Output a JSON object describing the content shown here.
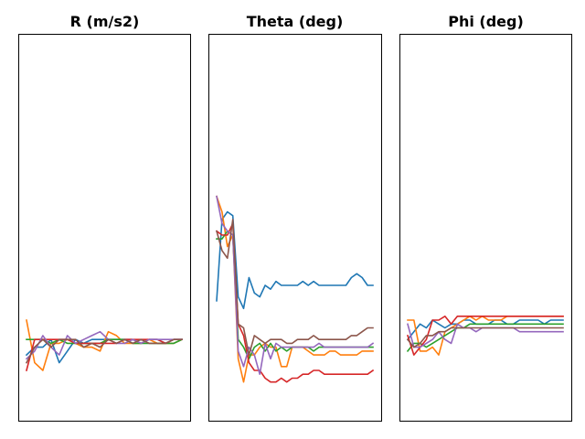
{
  "chart_data": [
    {
      "type": "line",
      "title": "R (m/s2)",
      "x": [
        0,
        1,
        2,
        3,
        4,
        5,
        6,
        7,
        8,
        9,
        10,
        11,
        12,
        13,
        14,
        15,
        16,
        17,
        18,
        19
      ],
      "ylim": [
        0,
        100
      ],
      "axes_visible": false,
      "grid": false,
      "series": [
        {
          "color": "#1f77b4",
          "values": [
            17,
            19,
            19,
            21,
            15,
            18,
            21,
            20,
            21,
            21,
            21,
            21,
            21,
            21,
            20,
            21,
            21,
            20,
            21,
            21
          ]
        },
        {
          "color": "#ff7f0e",
          "values": [
            26,
            15,
            13,
            20,
            20,
            21,
            20,
            19,
            19,
            18,
            23,
            22,
            20,
            20,
            20,
            21,
            20,
            20,
            20,
            21
          ]
        },
        {
          "color": "#2ca02c",
          "values": [
            21,
            21,
            21,
            20,
            21,
            20,
            20,
            20,
            20,
            20,
            21,
            21,
            21,
            20,
            20,
            20,
            20,
            20,
            20,
            21
          ]
        },
        {
          "color": "#d62728",
          "values": [
            13,
            21,
            21,
            21,
            21,
            21,
            20,
            20,
            20,
            20,
            20,
            20,
            21,
            21,
            21,
            21,
            21,
            20,
            21,
            21
          ]
        },
        {
          "color": "#9467bd",
          "values": [
            16,
            18,
            22,
            19,
            17,
            22,
            20,
            21,
            22,
            23,
            21,
            20,
            20,
            21,
            20,
            21,
            21,
            21,
            21,
            21
          ]
        },
        {
          "color": "#8c564b",
          "values": [
            15,
            19,
            21,
            19,
            21,
            21,
            21,
            19,
            20,
            19,
            21,
            20,
            21,
            20,
            21,
            20,
            20,
            20,
            21,
            21
          ]
        }
      ]
    },
    {
      "type": "line",
      "title": "Theta (deg)",
      "x": [
        0,
        1,
        2,
        3,
        4,
        5,
        6,
        7,
        8,
        9,
        10,
        11,
        12,
        13,
        14,
        15,
        16,
        17,
        18,
        19,
        20,
        21,
        22,
        23,
        24,
        25,
        26,
        27,
        28,
        29
      ],
      "ylim": [
        0,
        100
      ],
      "axes_visible": false,
      "grid": false,
      "series": [
        {
          "color": "#1f77b4",
          "values": [
            31,
            52,
            54,
            53,
            32,
            29,
            37,
            33,
            32,
            35,
            34,
            36,
            35,
            35,
            35,
            35,
            36,
            35,
            36,
            35,
            35,
            35,
            35,
            35,
            35,
            37,
            38,
            37,
            35,
            35
          ]
        },
        {
          "color": "#ff7f0e",
          "values": [
            58,
            54,
            45,
            48,
            16,
            10,
            17,
            17,
            19,
            20,
            19,
            19,
            14,
            14,
            19,
            19,
            19,
            18,
            17,
            17,
            17,
            18,
            18,
            17,
            17,
            17,
            17,
            18,
            18,
            18
          ]
        },
        {
          "color": "#2ca02c",
          "values": [
            47,
            47,
            49,
            48,
            21,
            19,
            16,
            19,
            20,
            18,
            20,
            18,
            19,
            18,
            19,
            19,
            19,
            19,
            18,
            19,
            19,
            19,
            19,
            19,
            19,
            19,
            19,
            19,
            19,
            19
          ]
        },
        {
          "color": "#d62728",
          "values": [
            49,
            48,
            48,
            51,
            25,
            22,
            15,
            13,
            13,
            11,
            10,
            10,
            11,
            10,
            11,
            11,
            12,
            12,
            13,
            13,
            12,
            12,
            12,
            12,
            12,
            12,
            12,
            12,
            12,
            13
          ]
        },
        {
          "color": "#9467bd",
          "values": [
            58,
            51,
            49,
            48,
            18,
            14,
            19,
            17,
            12,
            20,
            16,
            20,
            19,
            19,
            19,
            19,
            19,
            19,
            19,
            20,
            19,
            19,
            19,
            19,
            19,
            19,
            19,
            19,
            19,
            20
          ]
        },
        {
          "color": "#8c564b",
          "values": [
            49,
            44,
            42,
            52,
            25,
            24,
            17,
            22,
            21,
            20,
            21,
            21,
            21,
            20,
            20,
            21,
            21,
            21,
            22,
            21,
            21,
            21,
            21,
            21,
            21,
            22,
            22,
            23,
            24,
            24
          ]
        }
      ]
    },
    {
      "type": "line",
      "title": "Phi (deg)",
      "x": [
        0,
        1,
        2,
        3,
        4,
        5,
        6,
        7,
        8,
        9,
        10,
        11,
        12,
        13,
        14,
        15,
        16,
        17,
        18,
        19,
        20,
        21,
        22,
        23,
        24,
        25
      ],
      "ylim": [
        0,
        100
      ],
      "axes_visible": false,
      "grid": false,
      "series": [
        {
          "color": "#1f77b4",
          "values": [
            21,
            23,
            25,
            24,
            26,
            25,
            24,
            25,
            25,
            26,
            26,
            25,
            25,
            25,
            26,
            26,
            25,
            25,
            26,
            26,
            26,
            26,
            25,
            26,
            26,
            26
          ]
        },
        {
          "color": "#ff7f0e",
          "values": [
            26,
            26,
            18,
            18,
            19,
            17,
            23,
            24,
            25,
            26,
            27,
            26,
            27,
            26,
            26,
            26,
            27,
            27,
            27,
            27,
            27,
            27,
            27,
            27,
            27,
            27
          ]
        },
        {
          "color": "#2ca02c",
          "values": [
            18,
            20,
            20,
            19,
            20,
            21,
            22,
            23,
            24,
            24,
            25,
            25,
            25,
            25,
            25,
            25,
            25,
            25,
            25,
            25,
            25,
            25,
            25,
            25,
            25,
            25
          ]
        },
        {
          "color": "#d62728",
          "values": [
            22,
            17,
            19,
            21,
            26,
            26,
            27,
            25,
            27,
            27,
            27,
            27,
            27,
            27,
            27,
            27,
            27,
            27,
            27,
            27,
            27,
            27,
            27,
            27,
            27,
            27
          ]
        },
        {
          "color": "#9467bd",
          "values": [
            25,
            19,
            19,
            20,
            21,
            23,
            21,
            20,
            25,
            24,
            24,
            23,
            24,
            24,
            24,
            24,
            24,
            24,
            23,
            23,
            23,
            23,
            23,
            23,
            23,
            23
          ]
        },
        {
          "color": "#8c564b",
          "values": [
            21,
            19,
            20,
            22,
            22,
            23,
            23,
            24,
            24,
            24,
            24,
            24,
            24,
            24,
            24,
            24,
            24,
            24,
            24,
            24,
            24,
            24,
            24,
            24,
            24,
            24
          ]
        }
      ]
    }
  ]
}
